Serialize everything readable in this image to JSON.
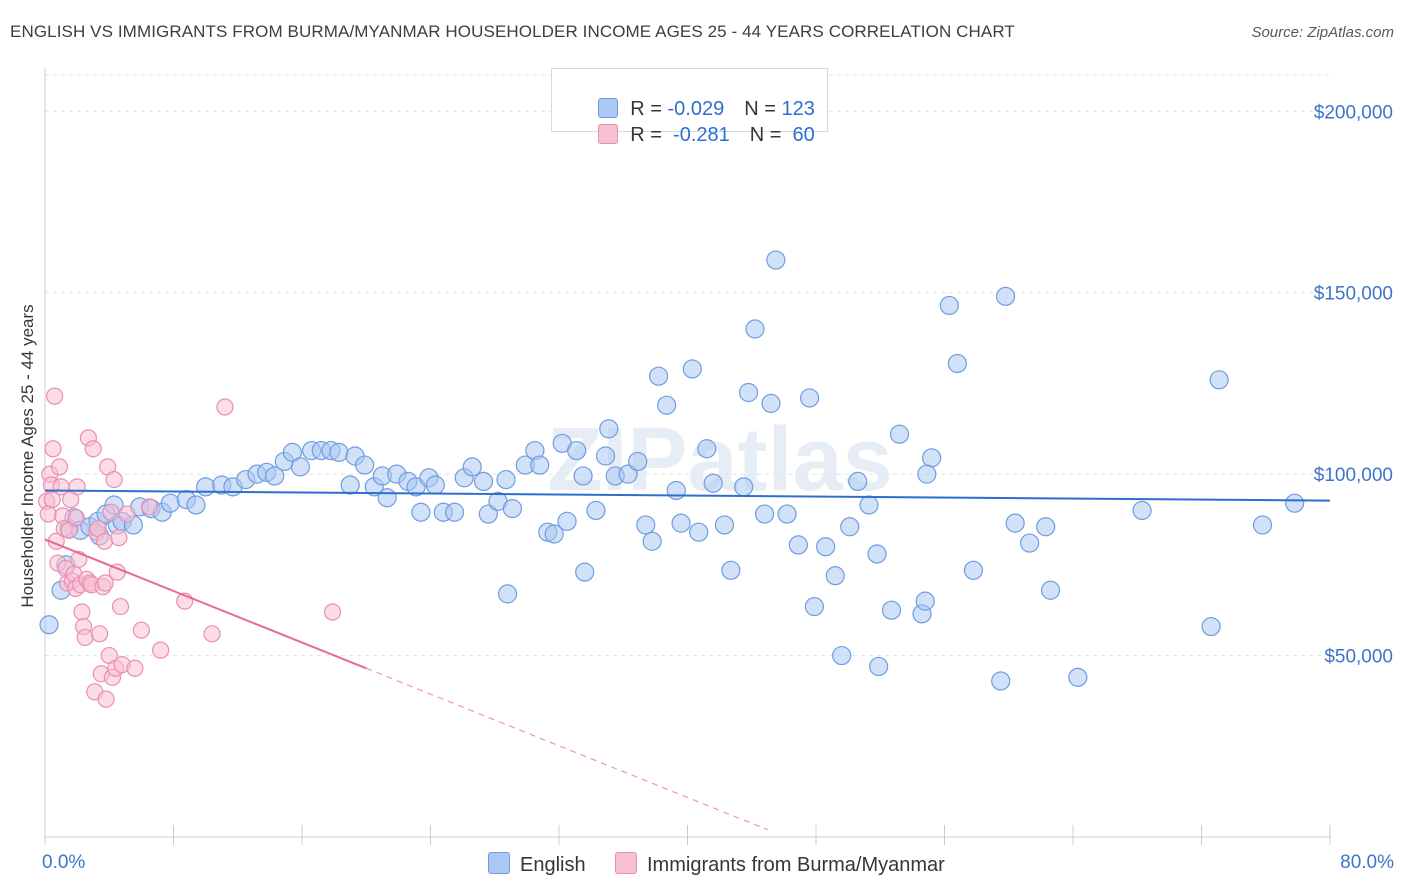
{
  "title": "ENGLISH VS IMMIGRANTS FROM BURMA/MYANMAR HOUSEHOLDER INCOME AGES 25 - 44 YEARS CORRELATION CHART",
  "source": "Source: ZipAtlas.com",
  "watermark": "ZIPatlas",
  "legend": {
    "rows": [
      {
        "r_label": "R = ",
        "r_value": "-0.029",
        "n_label": "N = ",
        "n_value": "123",
        "fill": "#aac8f3",
        "stroke": "#6f9de0"
      },
      {
        "r_label": "R = ",
        "r_value": " -0.281",
        "n_label": "N = ",
        "n_value": " 60",
        "fill": "#f8c0d3",
        "stroke": "#eb8fb0"
      }
    ]
  },
  "bottom_legend": [
    {
      "label": "English",
      "fill": "#aac8f3",
      "stroke": "#6f9de0"
    },
    {
      "label": "Immigrants from Burma/Myanmar",
      "fill": "#f8c0d3",
      "stroke": "#eb8fb0"
    }
  ],
  "chart_data": {
    "type": "scatter",
    "title": "ENGLISH VS IMMIGRANTS FROM BURMA/MYANMAR HOUSEHOLDER INCOME AGES 25 - 44 YEARS CORRELATION CHART",
    "xlabel": "",
    "ylabel": "Householder Income Ages 25 - 44 years",
    "xlim": [
      0,
      80
    ],
    "ylim": [
      0,
      210000
    ],
    "x_tick_labels": [
      "0.0%",
      "80.0%"
    ],
    "y_ticks": [
      50000,
      100000,
      150000,
      200000
    ],
    "y_tick_labels": [
      "$50,000",
      "$100,000",
      "$150,000",
      "$200,000"
    ],
    "grid": true,
    "legend_position": "top-center",
    "series": [
      {
        "name": "English",
        "color": "#6f9de0",
        "fill": "#aac8f3",
        "trend": {
          "x0": 0,
          "y0": 95500,
          "x1": 80,
          "y1": 92700,
          "line": "#2d6fd0"
        },
        "points": [
          [
            0.25,
            58500
          ],
          [
            1.0,
            68000
          ],
          [
            1.3,
            75000
          ],
          [
            1.5,
            85000
          ],
          [
            1.8,
            88000
          ],
          [
            2.2,
            84500
          ],
          [
            2.8,
            85500
          ],
          [
            3.3,
            87000
          ],
          [
            3.4,
            83000
          ],
          [
            3.8,
            89000
          ],
          [
            4.3,
            91500
          ],
          [
            4.5,
            86000
          ],
          [
            4.8,
            87000
          ],
          [
            5.5,
            86000
          ],
          [
            5.9,
            91000
          ],
          [
            6.6,
            90500
          ],
          [
            7.3,
            89500
          ],
          [
            7.8,
            92000
          ],
          [
            8.8,
            93000
          ],
          [
            9.4,
            91500
          ],
          [
            10.0,
            96500
          ],
          [
            11.0,
            97000
          ],
          [
            11.7,
            96500
          ],
          [
            12.5,
            98500
          ],
          [
            13.2,
            100000
          ],
          [
            13.8,
            100500
          ],
          [
            14.3,
            99500
          ],
          [
            14.9,
            103500
          ],
          [
            15.4,
            106000
          ],
          [
            15.9,
            102000
          ],
          [
            16.6,
            106500
          ],
          [
            17.2,
            106500
          ],
          [
            17.8,
            106500
          ],
          [
            18.3,
            106000
          ],
          [
            19.0,
            97000
          ],
          [
            19.3,
            105000
          ],
          [
            19.9,
            102500
          ],
          [
            20.5,
            96500
          ],
          [
            21.0,
            99500
          ],
          [
            21.3,
            93500
          ],
          [
            21.9,
            100000
          ],
          [
            22.6,
            98000
          ],
          [
            23.1,
            96500
          ],
          [
            23.4,
            89500
          ],
          [
            23.9,
            99000
          ],
          [
            24.3,
            97000
          ],
          [
            24.8,
            89500
          ],
          [
            25.5,
            89500
          ],
          [
            26.1,
            99000
          ],
          [
            26.6,
            102000
          ],
          [
            27.3,
            98000
          ],
          [
            27.6,
            89000
          ],
          [
            28.2,
            92500
          ],
          [
            28.7,
            98500
          ],
          [
            29.1,
            90500
          ],
          [
            29.9,
            102500
          ],
          [
            30.5,
            106500
          ],
          [
            30.8,
            102500
          ],
          [
            31.3,
            84000
          ],
          [
            31.7,
            83500
          ],
          [
            32.2,
            108500
          ],
          [
            32.5,
            87000
          ],
          [
            33.1,
            106500
          ],
          [
            33.5,
            99500
          ],
          [
            34.3,
            90000
          ],
          [
            34.9,
            105000
          ],
          [
            35.1,
            112500
          ],
          [
            35.5,
            99500
          ],
          [
            36.3,
            100000
          ],
          [
            36.9,
            103500
          ],
          [
            37.4,
            86000
          ],
          [
            37.8,
            81500
          ],
          [
            38.2,
            127000
          ],
          [
            38.7,
            119000
          ],
          [
            39.3,
            95500
          ],
          [
            39.6,
            86500
          ],
          [
            40.3,
            129000
          ],
          [
            40.7,
            84000
          ],
          [
            41.2,
            107000
          ],
          [
            41.6,
            97500
          ],
          [
            42.3,
            86000
          ],
          [
            42.7,
            73500
          ],
          [
            43.5,
            96500
          ],
          [
            43.8,
            122500
          ],
          [
            44.2,
            140000
          ],
          [
            44.8,
            89000
          ],
          [
            45.2,
            119500
          ],
          [
            45.5,
            159000
          ],
          [
            46.2,
            89000
          ],
          [
            46.9,
            80500
          ],
          [
            47.6,
            121000
          ],
          [
            47.9,
            63500
          ],
          [
            48.6,
            80000
          ],
          [
            49.2,
            72000
          ],
          [
            49.6,
            50000
          ],
          [
            50.1,
            85500
          ],
          [
            50.6,
            98000
          ],
          [
            51.3,
            91500
          ],
          [
            51.8,
            78000
          ],
          [
            51.9,
            47000
          ],
          [
            52.7,
            62500
          ],
          [
            53.2,
            111000
          ],
          [
            54.6,
            61500
          ],
          [
            54.8,
            65000
          ],
          [
            55.2,
            104500
          ],
          [
            56.3,
            146500
          ],
          [
            56.8,
            130500
          ],
          [
            57.8,
            73500
          ],
          [
            59.5,
            43000
          ],
          [
            59.8,
            149000
          ],
          [
            60.4,
            86500
          ],
          [
            61.3,
            81000
          ],
          [
            62.3,
            85500
          ],
          [
            62.6,
            68000
          ],
          [
            64.3,
            44000
          ],
          [
            68.3,
            90000
          ],
          [
            72.6,
            58000
          ],
          [
            73.1,
            126000
          ],
          [
            75.8,
            86000
          ],
          [
            77.8,
            92000
          ],
          [
            28.8,
            67000
          ],
          [
            33.6,
            73000
          ],
          [
            54.9,
            100000
          ]
        ]
      },
      {
        "name": "Immigrants from Burma/Myanmar",
        "color": "#eb8fb0",
        "fill": "#f8c0d3",
        "trend": {
          "x0": 0,
          "y0": 82000,
          "x1": 20,
          "y1": 46500,
          "line": "#e56a9a",
          "dashed_to": {
            "x": 45,
            "y": 2000
          }
        },
        "points": [
          [
            0.1,
            92500
          ],
          [
            0.2,
            89000
          ],
          [
            0.3,
            100000
          ],
          [
            0.4,
            97000
          ],
          [
            0.5,
            107000
          ],
          [
            0.6,
            121500
          ],
          [
            0.7,
            81500
          ],
          [
            0.8,
            75500
          ],
          [
            0.9,
            102000
          ],
          [
            1.0,
            96500
          ],
          [
            1.1,
            88500
          ],
          [
            1.2,
            85000
          ],
          [
            1.3,
            74000
          ],
          [
            1.4,
            70000
          ],
          [
            1.5,
            84500
          ],
          [
            1.6,
            93000
          ],
          [
            1.7,
            70500
          ],
          [
            1.8,
            72500
          ],
          [
            1.9,
            68500
          ],
          [
            2.0,
            96500
          ],
          [
            2.1,
            76500
          ],
          [
            2.2,
            69500
          ],
          [
            2.3,
            62000
          ],
          [
            2.4,
            58000
          ],
          [
            2.5,
            55000
          ],
          [
            2.6,
            71000
          ],
          [
            2.7,
            110000
          ],
          [
            2.8,
            70000
          ],
          [
            2.9,
            69500
          ],
          [
            3.0,
            107000
          ],
          [
            3.1,
            40000
          ],
          [
            3.2,
            84000
          ],
          [
            3.3,
            85000
          ],
          [
            3.4,
            56000
          ],
          [
            3.5,
            45000
          ],
          [
            3.6,
            69000
          ],
          [
            3.7,
            81500
          ],
          [
            3.8,
            38000
          ],
          [
            3.9,
            102000
          ],
          [
            4.0,
            50000
          ],
          [
            4.1,
            89500
          ],
          [
            4.2,
            44000
          ],
          [
            4.3,
            98500
          ],
          [
            4.4,
            46500
          ],
          [
            4.5,
            73000
          ],
          [
            4.6,
            82500
          ],
          [
            4.7,
            63500
          ],
          [
            4.8,
            47500
          ],
          [
            5.1,
            89000
          ],
          [
            5.6,
            46500
          ],
          [
            6.0,
            57000
          ],
          [
            6.5,
            91000
          ],
          [
            7.2,
            51500
          ],
          [
            8.7,
            65000
          ],
          [
            10.4,
            56000
          ],
          [
            11.2,
            118500
          ],
          [
            17.9,
            62000
          ],
          [
            0.45,
            93000
          ],
          [
            1.95,
            88000
          ],
          [
            3.75,
            70000
          ]
        ]
      }
    ]
  }
}
